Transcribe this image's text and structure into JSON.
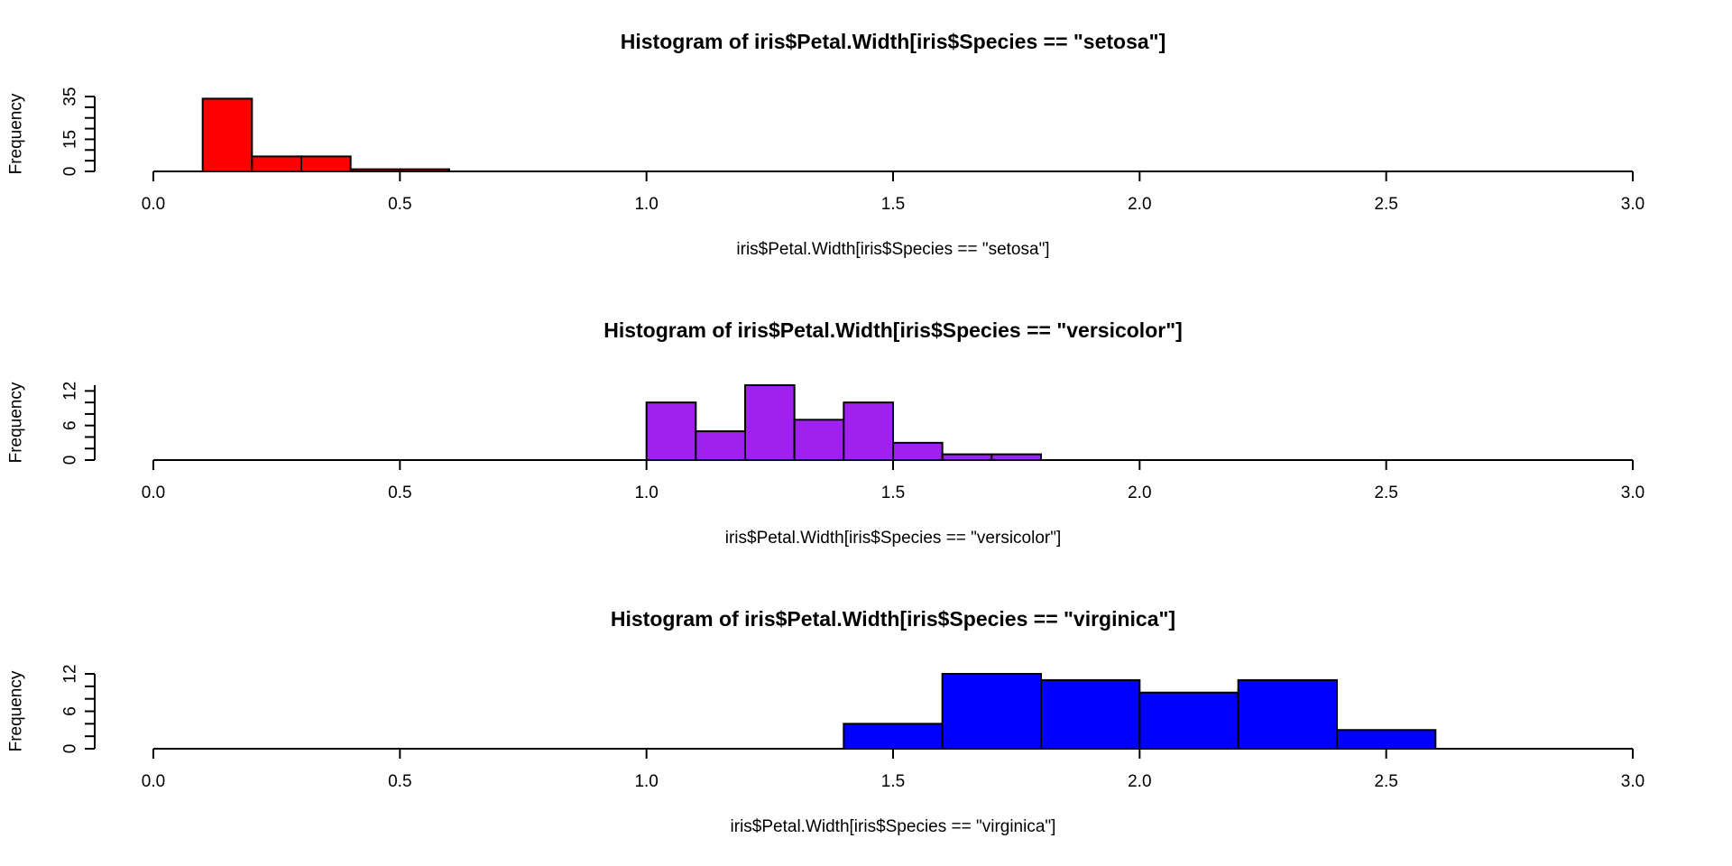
{
  "chart_data": [
    {
      "type": "bar",
      "subtype": "histogram",
      "title": "Histogram of iris$Petal.Width[iris$Species == \"setosa\"]",
      "xlabel": "iris$Petal.Width[iris$Species == \"setosa\"]",
      "ylabel": "Frequency",
      "color": "#ff0000",
      "xlim": [
        0,
        3
      ],
      "ylim": [
        0,
        35
      ],
      "x_ticks": [
        0.0,
        0.5,
        1.0,
        1.5,
        2.0,
        2.5,
        3.0
      ],
      "x_tick_labels": [
        "0.0",
        "0.5",
        "1.0",
        "1.5",
        "2.0",
        "2.5",
        "3.0"
      ],
      "y_ticks": [
        0,
        5,
        10,
        15,
        20,
        25,
        30,
        35
      ],
      "y_tick_labels": [
        "0",
        "",
        "",
        "15",
        "",
        "",
        "",
        "35"
      ],
      "bins": [
        {
          "start": 0.1,
          "end": 0.2,
          "count": 34
        },
        {
          "start": 0.2,
          "end": 0.3,
          "count": 7
        },
        {
          "start": 0.3,
          "end": 0.4,
          "count": 7
        },
        {
          "start": 0.4,
          "end": 0.5,
          "count": 1
        },
        {
          "start": 0.5,
          "end": 0.6,
          "count": 1
        }
      ],
      "grid": false
    },
    {
      "type": "bar",
      "subtype": "histogram",
      "title": "Histogram of iris$Petal.Width[iris$Species == \"versicolor\"]",
      "xlabel": "iris$Petal.Width[iris$Species == \"versicolor\"]",
      "ylabel": "Frequency",
      "color": "#a020f0",
      "xlim": [
        0,
        3
      ],
      "ylim": [
        0,
        13
      ],
      "x_ticks": [
        0.0,
        0.5,
        1.0,
        1.5,
        2.0,
        2.5,
        3.0
      ],
      "x_tick_labels": [
        "0.0",
        "0.5",
        "1.0",
        "1.5",
        "2.0",
        "2.5",
        "3.0"
      ],
      "y_ticks": [
        0,
        2,
        4,
        6,
        8,
        10,
        12
      ],
      "y_tick_labels": [
        "0",
        "",
        "",
        "6",
        "",
        "",
        "12"
      ],
      "bins": [
        {
          "start": 1.0,
          "end": 1.1,
          "count": 10
        },
        {
          "start": 1.1,
          "end": 1.2,
          "count": 5
        },
        {
          "start": 1.2,
          "end": 1.3,
          "count": 13
        },
        {
          "start": 1.3,
          "end": 1.4,
          "count": 7
        },
        {
          "start": 1.4,
          "end": 1.5,
          "count": 10
        },
        {
          "start": 1.5,
          "end": 1.6,
          "count": 3
        },
        {
          "start": 1.6,
          "end": 1.7,
          "count": 1
        },
        {
          "start": 1.7,
          "end": 1.8,
          "count": 1
        }
      ],
      "grid": false
    },
    {
      "type": "bar",
      "subtype": "histogram",
      "title": "Histogram of iris$Petal.Width[iris$Species == \"virginica\"]",
      "xlabel": "iris$Petal.Width[iris$Species == \"virginica\"]",
      "ylabel": "Frequency",
      "color": "#0000ff",
      "xlim": [
        0,
        3
      ],
      "ylim": [
        0,
        12
      ],
      "x_ticks": [
        0.0,
        0.5,
        1.0,
        1.5,
        2.0,
        2.5,
        3.0
      ],
      "x_tick_labels": [
        "0.0",
        "0.5",
        "1.0",
        "1.5",
        "2.0",
        "2.5",
        "3.0"
      ],
      "y_ticks": [
        0,
        2,
        4,
        6,
        8,
        10,
        12
      ],
      "y_tick_labels": [
        "0",
        "",
        "",
        "6",
        "",
        "",
        "12"
      ],
      "bins": [
        {
          "start": 1.4,
          "end": 1.6,
          "count": 4
        },
        {
          "start": 1.6,
          "end": 1.8,
          "count": 12
        },
        {
          "start": 1.8,
          "end": 2.0,
          "count": 11
        },
        {
          "start": 2.0,
          "end": 2.2,
          "count": 9
        },
        {
          "start": 2.2,
          "end": 2.4,
          "count": 11
        },
        {
          "start": 2.4,
          "end": 2.6,
          "count": 3
        }
      ],
      "grid": false
    }
  ]
}
